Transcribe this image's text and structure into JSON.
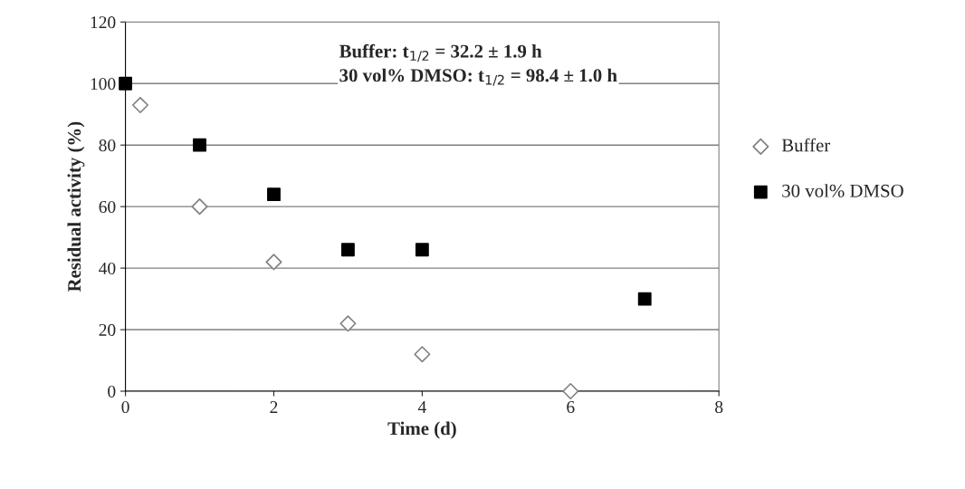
{
  "chart_data": {
    "type": "scatter",
    "xlabel": "Time (d)",
    "ylabel": "Residual activity (%)",
    "series": [
      {
        "name": "Buffer",
        "color": "#808080",
        "marker": "diamond",
        "x": [
          0.2,
          1,
          2,
          3,
          4,
          6
        ],
        "values": [
          93,
          60,
          42,
          22,
          12,
          0
        ]
      },
      {
        "name": "30 vol% DMSO",
        "color": "#000000",
        "marker": "square",
        "x": [
          0,
          1,
          2,
          3,
          4,
          7
        ],
        "values": [
          100,
          80,
          64,
          46,
          46,
          30
        ]
      }
    ],
    "xlim": [
      0,
      8
    ],
    "xticks": [
      0,
      2,
      4,
      6,
      8
    ],
    "ylim": [
      0,
      120
    ],
    "yticks": [
      0,
      20,
      40,
      60,
      80,
      100,
      120
    ],
    "grid": "y",
    "legend": "right",
    "annotations": [
      "Buffer: t$_{1/2}$ = 32.2 ± 1.9 h\n30 vol% DMSO: t$_{1/2}$ = 98.4 ± 1.0 h"
    ]
  }
}
